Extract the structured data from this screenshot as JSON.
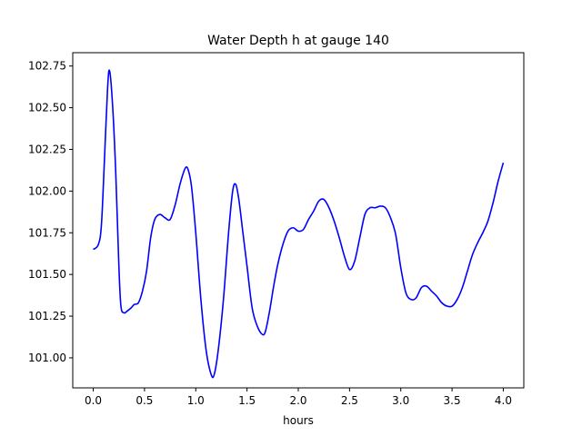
{
  "chart_data": {
    "type": "line",
    "title": "Water Depth h at gauge 140",
    "xlabel": "hours",
    "ylabel": "",
    "xlim": [
      -0.2,
      4.2
    ],
    "ylim": [
      100.82,
      102.83
    ],
    "xticks": [
      0.0,
      0.5,
      1.0,
      1.5,
      2.0,
      2.5,
      3.0,
      3.5,
      4.0
    ],
    "xtick_labels": [
      "0.0",
      "0.5",
      "1.0",
      "1.5",
      "2.0",
      "2.5",
      "3.0",
      "3.5",
      "4.0"
    ],
    "yticks": [
      101.0,
      101.25,
      101.5,
      101.75,
      102.0,
      102.25,
      102.5,
      102.75
    ],
    "ytick_labels": [
      "101.00",
      "101.25",
      "101.50",
      "101.75",
      "102.00",
      "102.25",
      "102.50",
      "102.75"
    ],
    "grid": false,
    "series": [
      {
        "color": "#0000ff",
        "x": [
          0.0,
          0.05,
          0.08,
          0.11,
          0.14,
          0.16,
          0.19,
          0.22,
          0.25,
          0.27,
          0.3,
          0.33,
          0.37,
          0.4,
          0.44,
          0.48,
          0.52,
          0.56,
          0.6,
          0.65,
          0.7,
          0.75,
          0.8,
          0.85,
          0.9,
          0.93,
          0.96,
          1.0,
          1.05,
          1.1,
          1.15,
          1.18,
          1.22,
          1.27,
          1.32,
          1.36,
          1.39,
          1.42,
          1.46,
          1.5,
          1.55,
          1.6,
          1.65,
          1.68,
          1.72,
          1.76,
          1.8,
          1.85,
          1.9,
          1.95,
          2.0,
          2.05,
          2.1,
          2.15,
          2.2,
          2.25,
          2.3,
          2.35,
          2.4,
          2.45,
          2.5,
          2.55,
          2.6,
          2.65,
          2.7,
          2.75,
          2.8,
          2.85,
          2.9,
          2.95,
          3.0,
          3.05,
          3.1,
          3.15,
          3.2,
          3.25,
          3.3,
          3.35,
          3.4,
          3.45,
          3.5,
          3.55,
          3.6,
          3.65,
          3.7,
          3.75,
          3.8,
          3.85,
          3.9,
          3.95,
          4.0
        ],
        "y": [
          101.65,
          101.68,
          101.8,
          102.2,
          102.62,
          102.72,
          102.5,
          102.1,
          101.55,
          101.31,
          101.27,
          101.28,
          101.3,
          101.32,
          101.33,
          101.4,
          101.52,
          101.72,
          101.83,
          101.86,
          101.84,
          101.83,
          101.92,
          102.05,
          102.14,
          102.12,
          102.02,
          101.75,
          101.35,
          101.05,
          100.9,
          100.9,
          101.05,
          101.35,
          101.75,
          102.0,
          102.04,
          101.95,
          101.75,
          101.55,
          101.3,
          101.19,
          101.14,
          101.16,
          101.28,
          101.43,
          101.56,
          101.68,
          101.76,
          101.78,
          101.76,
          101.77,
          101.83,
          101.88,
          101.94,
          101.95,
          101.9,
          101.82,
          101.72,
          101.61,
          101.53,
          101.58,
          101.72,
          101.86,
          101.9,
          101.9,
          101.91,
          101.9,
          101.84,
          101.74,
          101.54,
          101.39,
          101.35,
          101.36,
          101.42,
          101.43,
          101.4,
          101.37,
          101.33,
          101.31,
          101.31,
          101.35,
          101.42,
          101.52,
          101.62,
          101.69,
          101.75,
          101.82,
          101.93,
          102.06,
          102.17
        ]
      }
    ]
  }
}
